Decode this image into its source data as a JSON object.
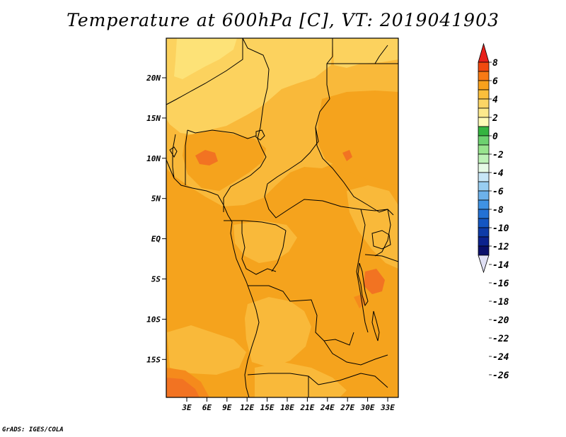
{
  "map": {
    "title": "Temperature at 600hPa [C], VT: 2019041903",
    "credit": "GrADS: IGES/COLA",
    "lat_ticks": [
      "20N",
      "15N",
      "10N",
      "5N",
      "EQ",
      "5S",
      "10S",
      "15S"
    ],
    "lon_ticks": [
      "3E",
      "6E",
      "9E",
      "12E",
      "15E",
      "18E",
      "21E",
      "24E",
      "27E",
      "30E",
      "33E"
    ],
    "colorbar": {
      "levels": [
        "8",
        "6",
        "4",
        "2",
        "0",
        "-2",
        "-4",
        "-6",
        "-8",
        "-10",
        "-12",
        "-14",
        "-16",
        "-18",
        "-20",
        "-22",
        "-24",
        "-26"
      ],
      "colors": [
        "#e8201a",
        "#f24a0f",
        "#f77a14",
        "#f9a11c",
        "#fbbf3c",
        "#fcd565",
        "#fde98c",
        "#fefbb8",
        "#34b440",
        "#6dd170",
        "#98e48e",
        "#bdf2b7",
        "#e6fbe6",
        "#c7e6f7",
        "#98cdf1",
        "#6cb1eb",
        "#3f92e3",
        "#2371d4",
        "#1456c2",
        "#0e3ba8",
        "#0c228e",
        "#0a0f6a",
        "#e0e0f5"
      ]
    },
    "field_colors": {
      "warm_base": "#f5a31d",
      "mid": "#f9b93a",
      "cool": "#fcd25e",
      "coolest": "#fde277",
      "hot": "#f58a1c",
      "hottest": "#f27322"
    }
  }
}
